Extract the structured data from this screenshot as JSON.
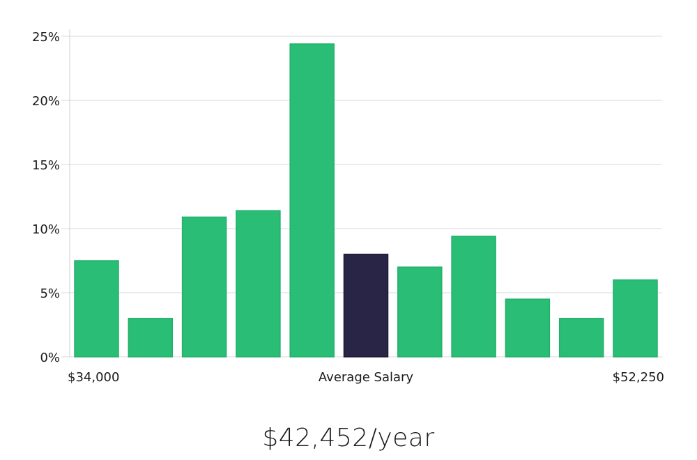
{
  "chart_data": {
    "type": "bar",
    "title": "",
    "xlabel": "Average Salary",
    "ylabel": "",
    "x_range_start_label": "$34,000",
    "x_range_end_label": "$52,250",
    "y_unit": "%",
    "ylim": [
      0,
      25
    ],
    "yticks": [
      0,
      5,
      10,
      15,
      20,
      25
    ],
    "ytick_labels": [
      "0%",
      "5%",
      "10%",
      "15%",
      "20%",
      "25%"
    ],
    "values": [
      7.5,
      3.0,
      10.9,
      11.4,
      24.4,
      8.0,
      7.0,
      9.4,
      4.5,
      3.0,
      6.0
    ],
    "highlight_index": 5,
    "grid": true
  },
  "colors": {
    "bar": "#2abd76",
    "bar_stroke": "#22b06c",
    "highlight": "#292547",
    "highlight_stroke": "#1a1733",
    "grid": "#d9d9d9"
  },
  "average_salary_text": "$42,452/year"
}
